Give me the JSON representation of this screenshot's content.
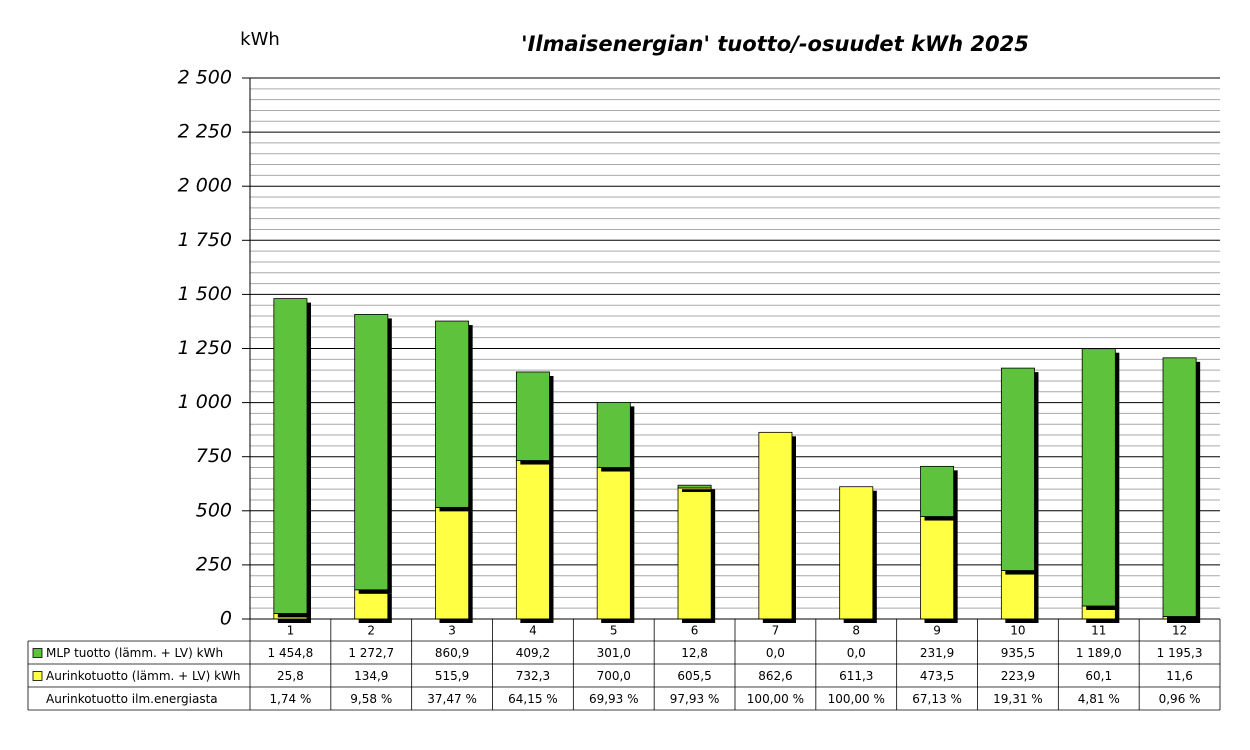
{
  "chart_data": {
    "type": "stacked_bar",
    "title": "'Ilmaisenergian' tuotto/-osuudet kWh 2025",
    "y_label": "kWh",
    "categories": [
      "1",
      "2",
      "3",
      "4",
      "5",
      "6",
      "7",
      "8",
      "9",
      "10",
      "11",
      "12"
    ],
    "series": [
      {
        "name": "MLP tuotto (lämm. + LV) kWh",
        "color": "#5fc23c",
        "values": [
          1454.8,
          1272.7,
          860.9,
          409.2,
          301.0,
          12.8,
          0.0,
          0.0,
          231.9,
          935.5,
          1189.0,
          1195.3
        ],
        "value_labels": [
          "1 454,8",
          "1 272,7",
          "860,9",
          "409,2",
          "301,0",
          "12,8",
          "0,0",
          "0,0",
          "231,9",
          "935,5",
          "1 189,0",
          "1 195,3"
        ]
      },
      {
        "name": "Aurinkotuotto (lämm. + LV) kWh",
        "color": "#ffff44",
        "values": [
          25.8,
          134.9,
          515.9,
          732.3,
          700.0,
          605.5,
          862.6,
          611.3,
          473.5,
          223.9,
          60.1,
          11.6
        ],
        "value_labels": [
          "25,8",
          "134,9",
          "515,9",
          "732,3",
          "700,0",
          "605,5",
          "862,6",
          "611,3",
          "473,5",
          "223,9",
          "60,1",
          "11,6"
        ]
      }
    ],
    "share": {
      "name": "Aurinkotuotto ilm.energiasta",
      "values": [
        1.74,
        9.58,
        37.47,
        64.15,
        69.93,
        97.93,
        100.0,
        100.0,
        67.13,
        19.31,
        4.81,
        0.96
      ],
      "value_labels": [
        "1,74 %",
        "9,58 %",
        "37,47 %",
        "64,15 %",
        "69,93 %",
        "97,93 %",
        "100,00 %",
        "100,00 %",
        "67,13 %",
        "19,31 %",
        "4,81 %",
        "0,96 %"
      ]
    },
    "ylim": [
      0,
      2500
    ],
    "yticks": [
      0,
      250,
      500,
      750,
      {
        "value": 1000,
        "label": "1 000"
      },
      {
        "value": 1250,
        "label": "1 250"
      },
      {
        "value": 1500,
        "label": "1 500"
      },
      {
        "value": 1750,
        "label": "1 750"
      },
      {
        "value": 2000,
        "label": "2 000"
      },
      {
        "value": 2250,
        "label": "2 250"
      },
      {
        "value": 2500,
        "label": "2 500"
      }
    ],
    "grid": true
  }
}
